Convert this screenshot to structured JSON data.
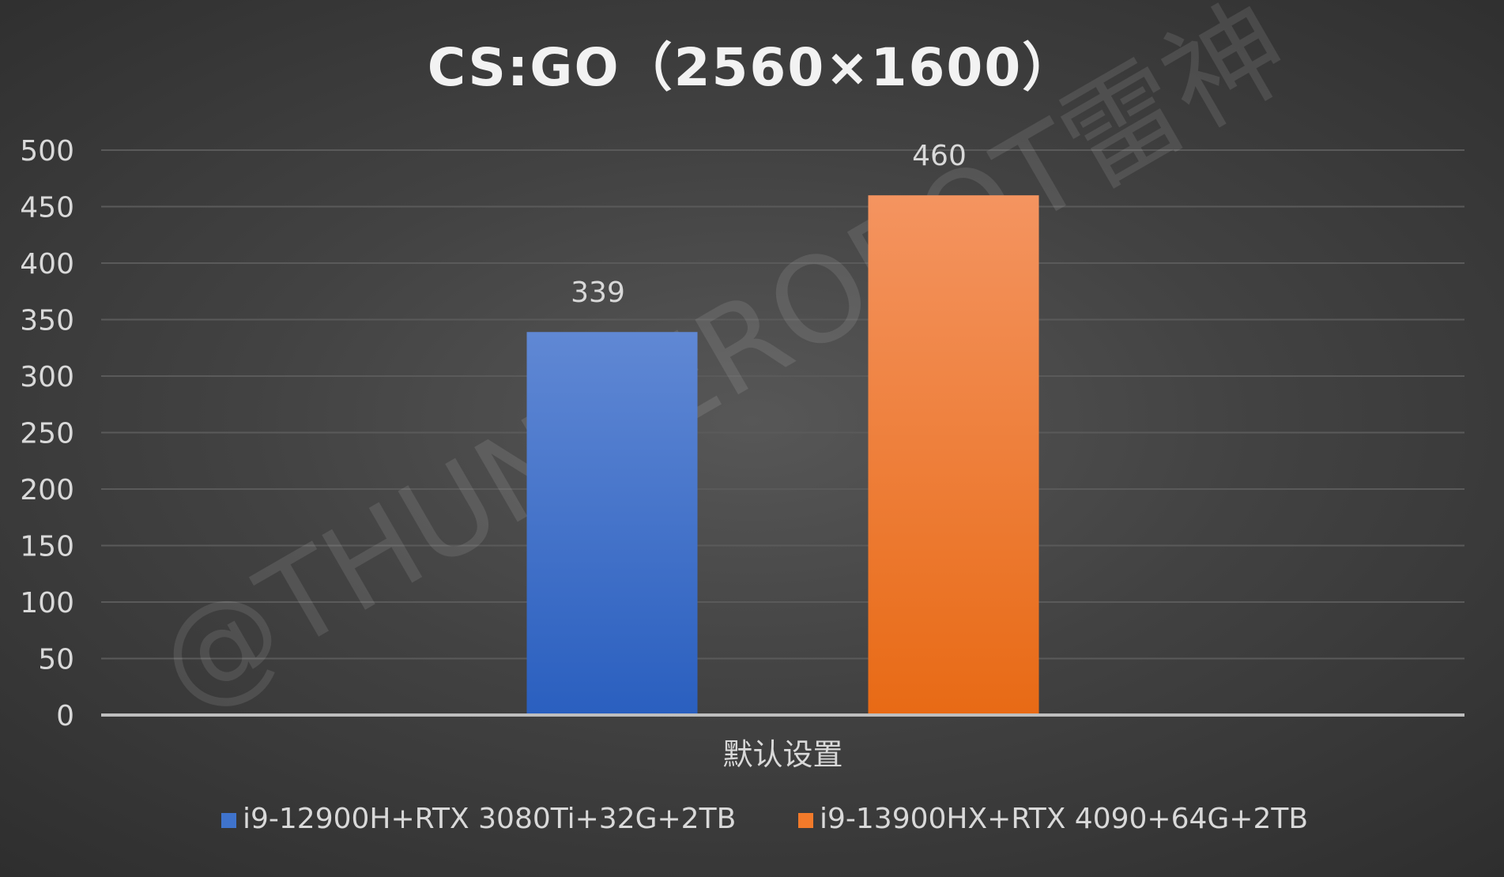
{
  "chart_data": {
    "type": "bar",
    "title": "CS:GO（2560×1600）",
    "categories": [
      "默认设置"
    ],
    "series": [
      {
        "name": "i9-12900H+RTX 3080Ti+32G+2TB",
        "values": [
          339
        ],
        "color": "#3f73cc"
      },
      {
        "name": "i9-13900HX+RTX 4090+64G+2TB",
        "values": [
          460
        ],
        "color": "#f27a2a"
      }
    ],
    "ylim": [
      0,
      500
    ],
    "yticks": [
      0,
      50,
      100,
      150,
      200,
      250,
      300,
      350,
      400,
      450,
      500
    ],
    "xlabel": "",
    "ylabel": "",
    "grid": true,
    "legend": "bottom",
    "data_labels": true
  },
  "watermark": "@THUNDEROBOT雷神"
}
